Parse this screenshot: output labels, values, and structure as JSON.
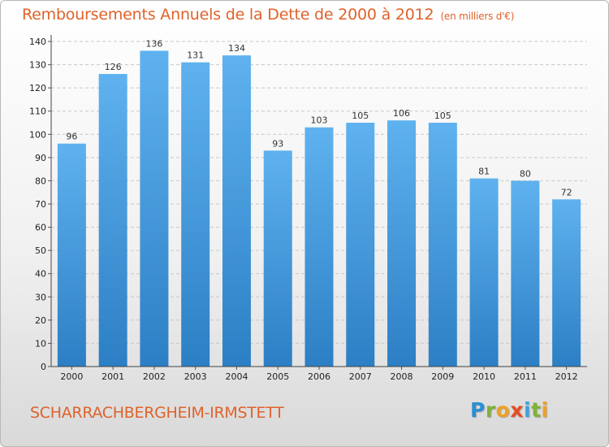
{
  "chart_data": {
    "type": "bar",
    "title": "Remboursements Annuels de la Dette de 2000 à 2012",
    "unit": "(en milliers d'€)",
    "categories": [
      "2000",
      "2001",
      "2002",
      "2003",
      "2004",
      "2005",
      "2006",
      "2007",
      "2008",
      "2009",
      "2010",
      "2011",
      "2012"
    ],
    "values": [
      96,
      126,
      136,
      131,
      134,
      93,
      103,
      105,
      106,
      105,
      81,
      80,
      72
    ],
    "ylim": [
      0,
      140
    ],
    "yticks": [
      0,
      10,
      20,
      30,
      40,
      50,
      60,
      70,
      80,
      90,
      100,
      110,
      120,
      130,
      140
    ],
    "grid": true,
    "bar_color_top": "#5fb2ef",
    "bar_color_bottom": "#2c7fc4",
    "title_color": "#e0622a"
  },
  "footer": {
    "city": "SCHARRACHBERGHEIM-IRMSTETT",
    "logo_letters": [
      "P",
      "r",
      "o",
      "x",
      "i",
      "t",
      "i"
    ]
  }
}
